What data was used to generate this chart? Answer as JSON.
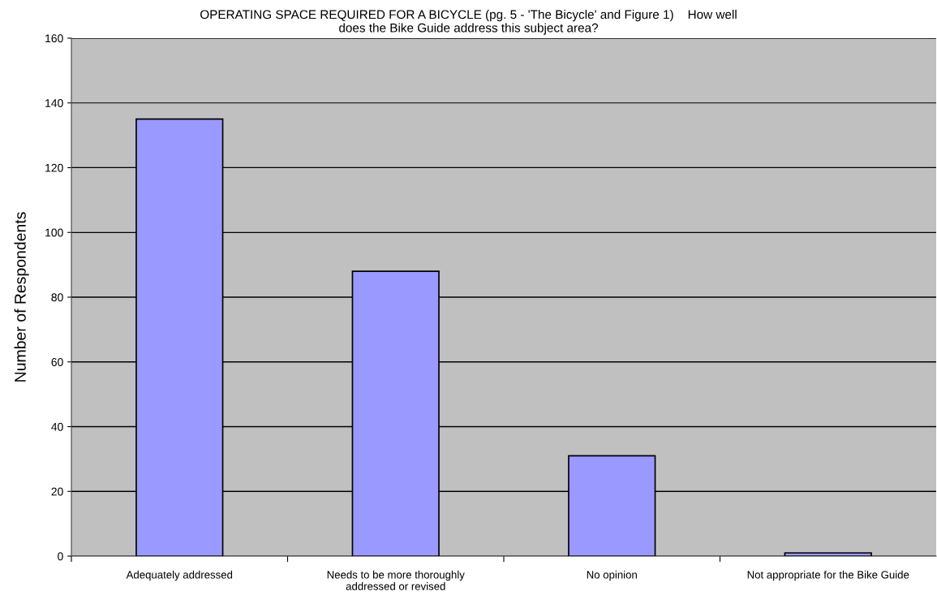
{
  "chart_data": {
    "type": "bar",
    "title": "OPERATING SPACE REQUIRED FOR A BICYCLE (pg. 5 - 'The Bicycle' and Figure 1)    How well\ndoes the Bike Guide address this subject area?",
    "ylabel": "Number of Respondents",
    "categories": [
      "Adequately addressed",
      "Needs to be more thoroughly\naddressed or revised",
      "No opinion",
      "Not appropriate for the Bike Guide"
    ],
    "values": [
      135,
      88,
      31,
      1
    ],
    "color": "#9999ff",
    "ylim": [
      0,
      160
    ],
    "yticks": [
      0,
      20,
      40,
      60,
      80,
      100,
      120,
      140,
      160
    ],
    "grid": "y"
  }
}
